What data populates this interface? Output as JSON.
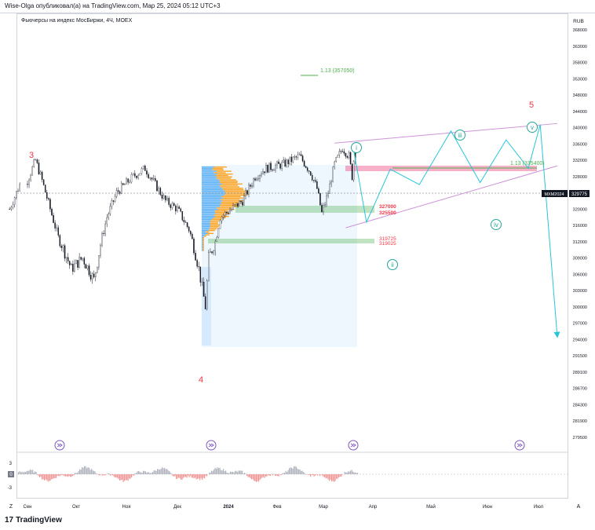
{
  "header": {
    "published_by": "Wise-Olga опубликовал(а) на TradingView.com, Мар 25, 2024 05:12 UTC+3"
  },
  "chart_data": {
    "type": "candlestick",
    "title": "Фьючерсы на индекс МосБиржи, 4Ч, MOEX",
    "currency": "RUB",
    "ticker": "MXM2024",
    "last_price": 329775,
    "y_tick_labels": [
      368000,
      363000,
      358000,
      353000,
      348000,
      344000,
      340000,
      336000,
      332000,
      328000,
      324000,
      320000,
      316000,
      312000,
      309000,
      306000,
      303000,
      300000,
      297000,
      294000,
      291500,
      289100,
      286700,
      284300,
      281900,
      279500
    ],
    "x_tick_labels": [
      "Сен",
      "Окт",
      "Ноя",
      "Дек",
      "2024",
      "Фев",
      "Мар",
      "Апр",
      "Май",
      "Июн",
      "Июл"
    ],
    "ylim": [
      279500,
      368000
    ],
    "indicator_ticks": [
      "3",
      "0",
      "-3"
    ],
    "levels": [
      {
        "label": "327000",
        "value": 327000,
        "color": "#f23645"
      },
      {
        "label": "325500",
        "value": 325500,
        "color": "#f23645"
      },
      {
        "label": "319725",
        "value": 319725,
        "color": "#f23645"
      },
      {
        "label": "319025",
        "value": 319025,
        "color": "#f23645"
      }
    ],
    "fib_targets": [
      {
        "label": "1.13 (357050)",
        "value": 357050,
        "color": "#4caf50"
      },
      {
        "label": "1.13 (335400)",
        "value": 335400,
        "color": "#4caf50"
      }
    ],
    "wave_labels": [
      {
        "text": "3",
        "color": "#f23645"
      },
      {
        "text": "4",
        "color": "#f23645"
      },
      {
        "text": "5",
        "color": "#f23645"
      },
      {
        "text": "i",
        "color": "#26a69a"
      },
      {
        "text": "ii",
        "color": "#26a69a"
      },
      {
        "text": "iii",
        "color": "#26a69a"
      },
      {
        "text": "iv",
        "color": "#26a69a"
      },
      {
        "text": "v",
        "color": "#26a69a"
      }
    ],
    "projection_path": [
      {
        "date": "2024-03-20",
        "value": 334500
      },
      {
        "date": "2024-03-28",
        "value": 316800
      },
      {
        "date": "2024-04-10",
        "value": 329800
      },
      {
        "date": "2024-04-25",
        "value": 326000
      },
      {
        "date": "2024-05-12",
        "value": 339200
      },
      {
        "date": "2024-05-28",
        "value": 326500
      },
      {
        "date": "2024-06-12",
        "value": 337000
      },
      {
        "date": "2024-06-25",
        "value": 330000
      },
      {
        "date": "2024-07-02",
        "value": 340700
      },
      {
        "date": "2024-07-12",
        "value": 294800
      }
    ],
    "wedge_upper": [
      {
        "date": "2024-03-08",
        "value": 336200
      },
      {
        "date": "2024-07-12",
        "value": 341000
      }
    ],
    "wedge_lower": [
      {
        "date": "2024-03-15",
        "value": 315400
      },
      {
        "date": "2024-07-12",
        "value": 330600
      }
    ],
    "grid": false
  },
  "footer": {
    "logo": "TradingView",
    "logo_mark": "17",
    "left_corner": "Z",
    "right_corner": "A"
  }
}
